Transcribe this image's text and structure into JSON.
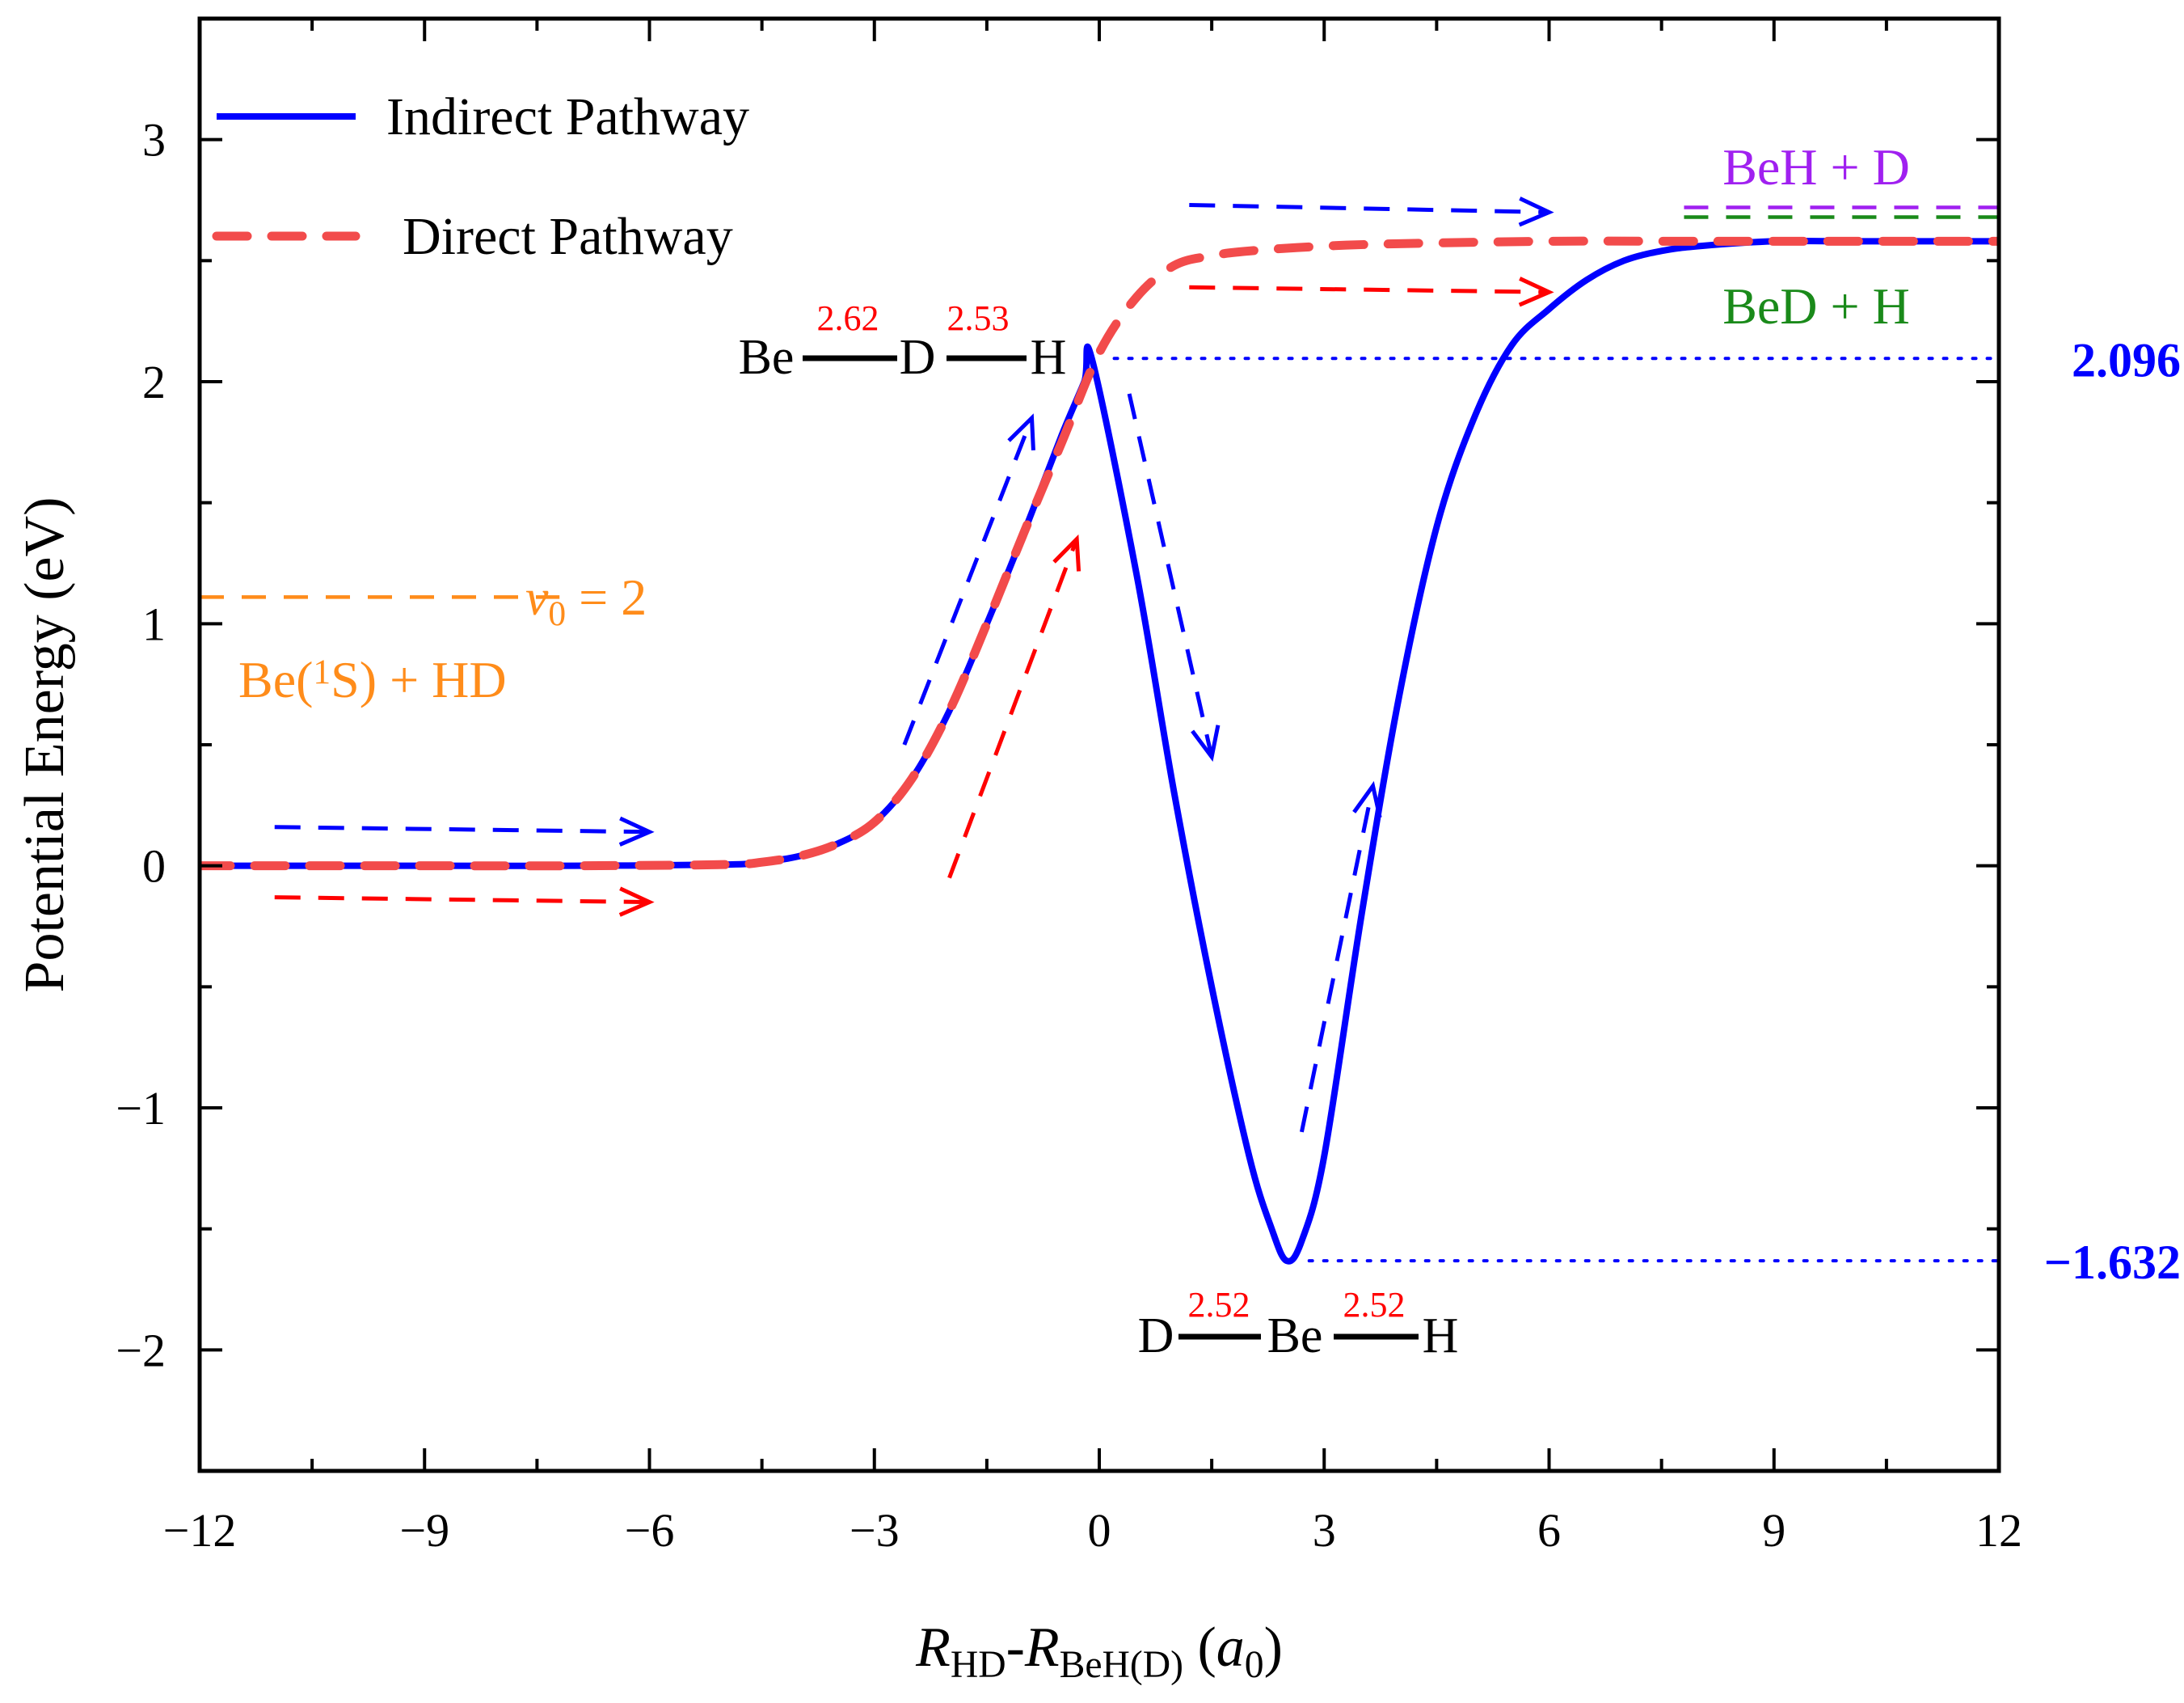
{
  "chart_data": {
    "type": "line",
    "xlabel": {
      "parts": [
        {
          "text": "R",
          "style": "italic"
        },
        {
          "text": "HD",
          "style": "sub"
        },
        {
          "text": "-",
          "style": "normal"
        },
        {
          "text": "R",
          "style": "italic"
        },
        {
          "text": "BeH(D)",
          "style": "sub"
        },
        {
          "text": " (",
          "style": "normal"
        },
        {
          "text": "a",
          "style": "italic"
        },
        {
          "text": "0",
          "style": "sub"
        },
        {
          "text": ")",
          "style": "normal"
        }
      ]
    },
    "ylabel": "Potential Energy (eV)",
    "xlim": [
      -12,
      12
    ],
    "ylim": [
      -2.5,
      3.5
    ],
    "xticks": [
      {
        "value": -12,
        "label": "−12"
      },
      {
        "value": -9,
        "label": "−9"
      },
      {
        "value": -6,
        "label": "−6"
      },
      {
        "value": -3,
        "label": "−3"
      },
      {
        "value": 0,
        "label": "0"
      },
      {
        "value": 3,
        "label": "3"
      },
      {
        "value": 6,
        "label": "6"
      },
      {
        "value": 9,
        "label": "9"
      },
      {
        "value": 12,
        "label": "12"
      }
    ],
    "yticks": [
      {
        "value": -2,
        "label": "−2"
      },
      {
        "value": -1,
        "label": "−1"
      },
      {
        "value": 0,
        "label": "0"
      },
      {
        "value": 1,
        "label": "1"
      },
      {
        "value": 2,
        "label": "2"
      },
      {
        "value": 3,
        "label": "3"
      }
    ],
    "legend": {
      "position": "top-left",
      "entries": [
        {
          "label": "Indirect Pathway",
          "color": "#0000ff",
          "dash": "solid"
        },
        {
          "label": "Direct Pathway",
          "color": "#f24b4b",
          "dash": "dashed"
        }
      ]
    },
    "series": [
      {
        "name": "Indirect Pathway",
        "color": "#0000ff",
        "dash": "solid",
        "x": [
          -12,
          -9,
          -7,
          -5,
          -4.5,
          -4,
          -3.5,
          -3,
          -2.5,
          -2,
          -1.5,
          -1,
          -0.5,
          -0.2,
          -0.1,
          0.5,
          1,
          1.5,
          2,
          2.3,
          2.5,
          2.7,
          3,
          3.5,
          4,
          4.5,
          5,
          5.5,
          6,
          6.5,
          7,
          7.5,
          8,
          9,
          10,
          12
        ],
        "y": [
          0,
          0,
          0,
          0.005,
          0.015,
          0.04,
          0.09,
          0.18,
          0.36,
          0.64,
          1.0,
          1.38,
          1.78,
          2.0,
          2.096,
          1.2,
          0.3,
          -0.5,
          -1.2,
          -1.5,
          -1.632,
          -1.55,
          -1.2,
          -0.2,
          0.7,
          1.4,
          1.85,
          2.15,
          2.3,
          2.42,
          2.5,
          2.54,
          2.56,
          2.58,
          2.58,
          2.58
        ]
      },
      {
        "name": "Direct Pathway",
        "color": "#f24b4b",
        "dash": "dashed",
        "x": [
          -12,
          -9,
          -7,
          -5,
          -4.5,
          -4,
          -3.5,
          -3,
          -2.5,
          -2,
          -1.5,
          -1,
          -0.5,
          0,
          0.5,
          1,
          1.5,
          2,
          3,
          4,
          6,
          8,
          10,
          12
        ],
        "y": [
          0,
          0,
          0,
          0.005,
          0.015,
          0.04,
          0.09,
          0.18,
          0.36,
          0.64,
          1.0,
          1.38,
          1.75,
          2.12,
          2.35,
          2.48,
          2.52,
          2.54,
          2.56,
          2.57,
          2.58,
          2.58,
          2.58,
          2.58
        ]
      }
    ],
    "reference_lines": [
      {
        "name": "v0-level",
        "y": 1.11,
        "x_range": [
          -12,
          -7.2
        ],
        "color": "#ff8c1a",
        "dash": "dashed"
      },
      {
        "name": "ts-level",
        "y": 2.096,
        "x_range": [
          0.2,
          12
        ],
        "color": "#0000ff",
        "dash": "dotted"
      },
      {
        "name": "well-level",
        "y": -1.632,
        "x_range": [
          2.8,
          12
        ],
        "color": "#0000ff",
        "dash": "dotted"
      },
      {
        "name": "beh-d-level",
        "y": 2.72,
        "x_range": [
          7.8,
          12
        ],
        "color": "#a020f0",
        "dash": "dashed"
      },
      {
        "name": "bed-h-level",
        "y": 2.68,
        "x_range": [
          7.8,
          12
        ],
        "color": "#1a8a1a",
        "dash": "dashed"
      }
    ],
    "arrows": [
      {
        "color": "#0000ff",
        "from": [
          -11,
          0.16
        ],
        "to": [
          -6,
          0.14
        ]
      },
      {
        "color": "#ff0000",
        "from": [
          -11,
          -0.13
        ],
        "to": [
          -6,
          -0.15
        ]
      },
      {
        "color": "#0000ff",
        "from": [
          -2.6,
          0.5
        ],
        "to": [
          -0.9,
          1.85
        ]
      },
      {
        "color": "#ff0000",
        "from": [
          -2,
          -0.05
        ],
        "to": [
          -0.3,
          1.35
        ]
      },
      {
        "color": "#0000ff",
        "from": [
          0.4,
          1.95
        ],
        "to": [
          1.5,
          0.45
        ]
      },
      {
        "color": "#0000ff",
        "from": [
          2.7,
          -1.1
        ],
        "to": [
          3.65,
          0.33
        ]
      },
      {
        "color": "#0000ff",
        "from": [
          1.2,
          2.73
        ],
        "to": [
          6,
          2.7
        ]
      },
      {
        "color": "#ff0000",
        "from": [
          1.2,
          2.39
        ],
        "to": [
          6,
          2.37
        ]
      }
    ],
    "value_labels": [
      {
        "text": "2.096",
        "y": 2.096,
        "color": "#0000ff"
      },
      {
        "text": "−1.632",
        "y": -1.632,
        "color": "#0000ff"
      }
    ],
    "annotations": [
      {
        "name": "asymptote-beh-d",
        "text": "BeH + D",
        "color": "#a020f0"
      },
      {
        "name": "asymptote-bed-h",
        "text": "BeD + H",
        "color": "#1a8a1a"
      },
      {
        "name": "reactant-label",
        "parts": [
          "Be(",
          "1",
          "S) + HD"
        ],
        "color": "#ff8c1a"
      },
      {
        "name": "vib-label",
        "parts": [
          "v",
          "0",
          " = 2"
        ],
        "color": "#ff8c1a"
      }
    ],
    "structures": [
      {
        "name": "transition-state",
        "atoms": [
          "Be",
          "D",
          "H"
        ],
        "bonds": [
          "2.62",
          "2.53"
        ]
      },
      {
        "name": "well-complex",
        "atoms": [
          "D",
          "Be",
          "H"
        ],
        "bonds": [
          "2.52",
          "2.52"
        ]
      }
    ]
  }
}
